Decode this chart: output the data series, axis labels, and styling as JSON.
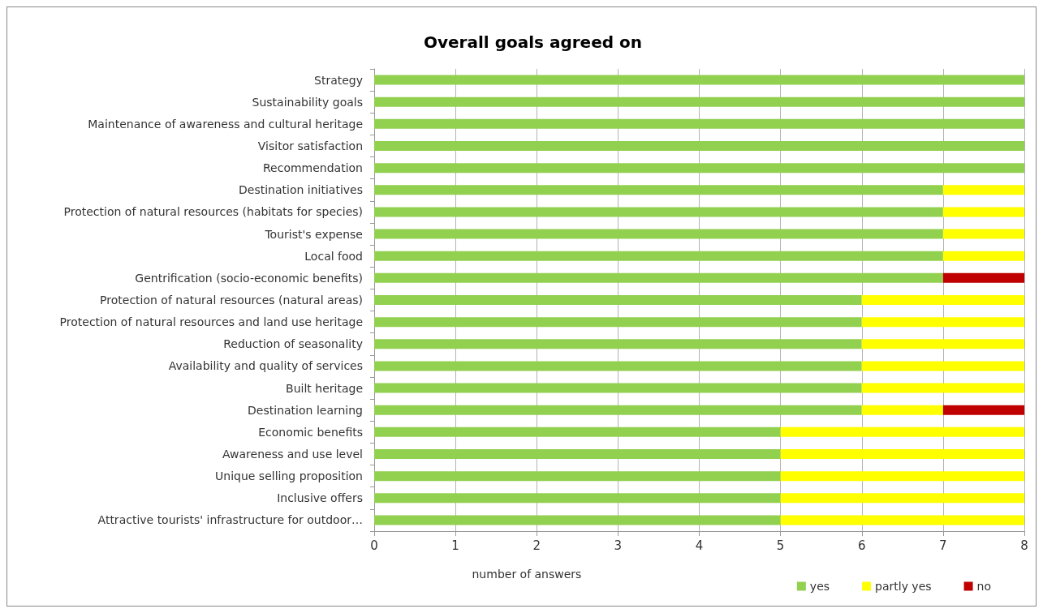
{
  "chart_data": {
    "type": "bar",
    "orientation": "horizontal",
    "stacked": true,
    "title": "Overall goals agreed on",
    "xlabel": "number of answers",
    "categories": [
      "Strategy",
      "Sustainability goals",
      "Maintenance of awareness and cultural heritage",
      "Visitor satisfaction",
      "Recommendation",
      "Destination initiatives",
      "Protection of natural resources (habitats for species)",
      "Tourist's expense",
      "Local food",
      "Gentrification (socio-economic benefits)",
      "Protection of natural resources (natural areas)",
      "Protection of natural resources and land use heritage",
      "Reduction of seasonality",
      "Availability and quality of services",
      "Built heritage",
      "Destination learning",
      "Economic benefits",
      "Awareness and use level",
      "Unique selling proposition",
      "Inclusive offers",
      "Attractive tourists' infrastructure for outdoor…"
    ],
    "series": [
      {
        "name": "yes",
        "color": "#92d050",
        "values": [
          8,
          8,
          8,
          8,
          8,
          7,
          7,
          7,
          7,
          7,
          6,
          6,
          6,
          6,
          6,
          6,
          5,
          5,
          5,
          5,
          5
        ]
      },
      {
        "name": "partly yes",
        "color": "#ffff00",
        "values": [
          0,
          0,
          0,
          0,
          0,
          1,
          1,
          1,
          1,
          0,
          2,
          2,
          2,
          2,
          2,
          1,
          3,
          3,
          3,
          3,
          3
        ]
      },
      {
        "name": "no",
        "color": "#c00000",
        "values": [
          0,
          0,
          0,
          0,
          0,
          0,
          0,
          0,
          0,
          1,
          0,
          0,
          0,
          0,
          0,
          1,
          0,
          0,
          0,
          0,
          0
        ]
      }
    ],
    "xlim": [
      0,
      8
    ],
    "xticks": [
      0,
      1,
      2,
      3,
      4,
      5,
      6,
      7,
      8
    ],
    "grid": "x",
    "legend": "bottom right"
  }
}
